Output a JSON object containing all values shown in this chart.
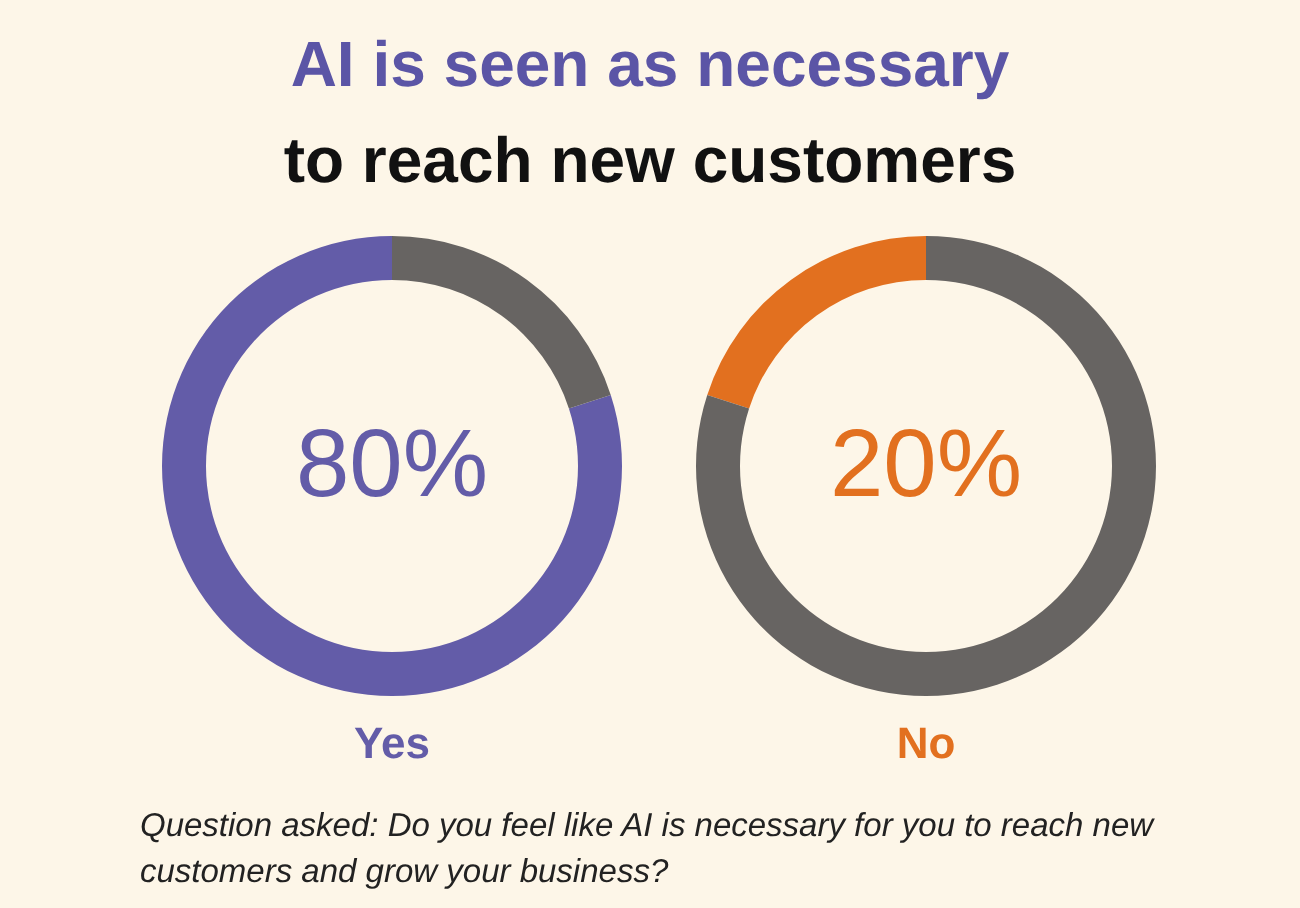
{
  "chart_data": [
    {
      "type": "donut",
      "title": "AI is seen as necessary",
      "subtitle": "to reach new customers",
      "xlabel": "Yes",
      "categories": [
        null,
        null
      ],
      "values": [
        80,
        20
      ],
      "colors": [
        "#635ca8",
        "#676462"
      ],
      "value_labels": [
        "80%",
        null
      ],
      "annotations": [
        "Question asked: Do you feel like AI is necessary for you to reach new customers and grow your business?"
      ]
    },
    {
      "type": "donut",
      "xlabel": "No",
      "categories": [
        null,
        null
      ],
      "values": [
        20,
        80
      ],
      "colors": [
        "#e2701f",
        "#676462"
      ],
      "value_labels": [
        "20%",
        null
      ]
    }
  ]
}
